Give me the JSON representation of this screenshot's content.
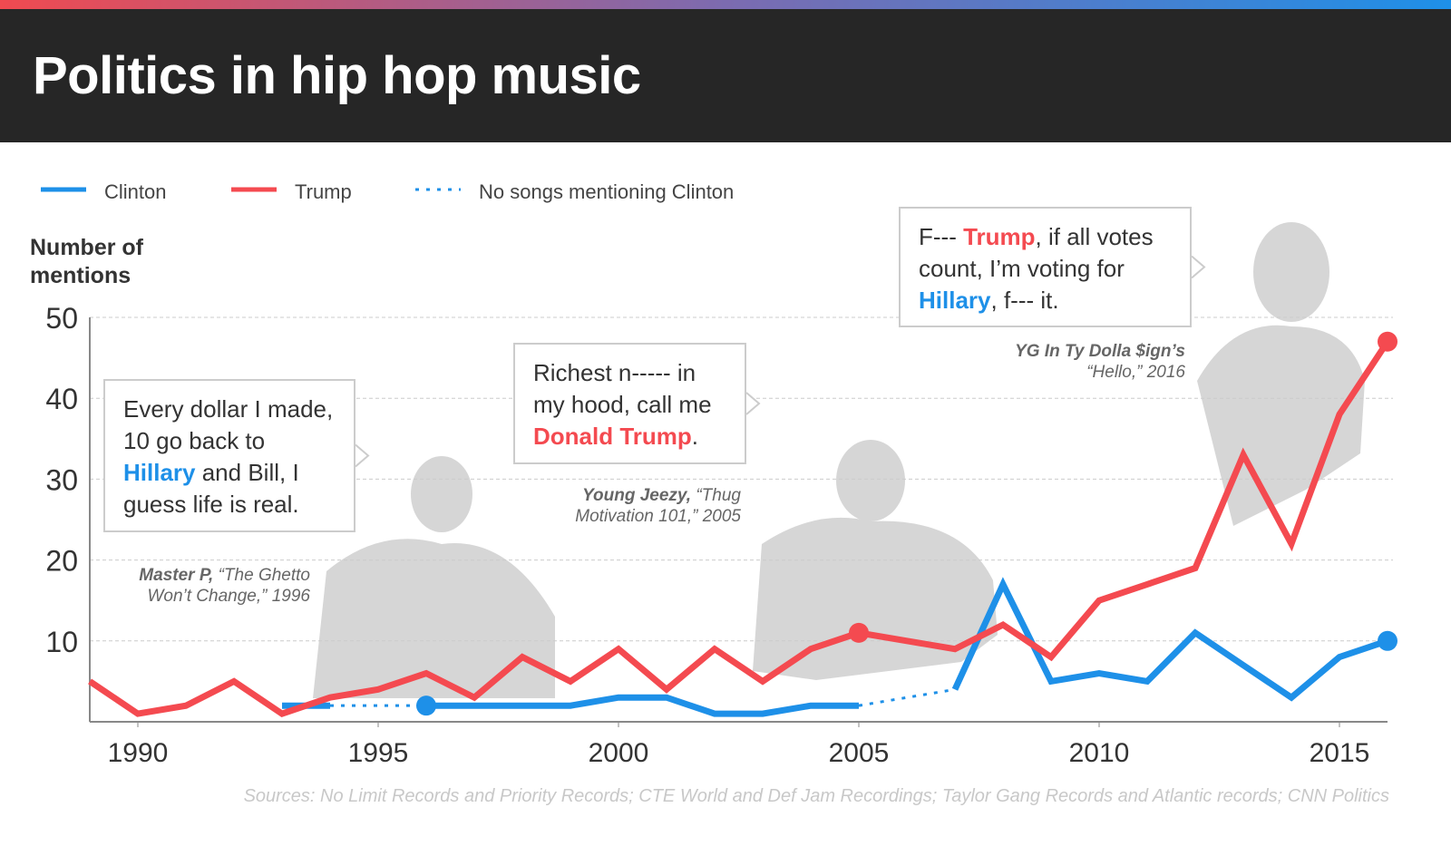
{
  "chart_data": {
    "type": "line",
    "title": "Politics in hip hop music",
    "y_label": "Number of mentions",
    "x": [
      1989,
      1990,
      1991,
      1992,
      1993,
      1994,
      1995,
      1996,
      1997,
      1998,
      1999,
      2000,
      2001,
      2002,
      2003,
      2004,
      2005,
      2006,
      2007,
      2008,
      2009,
      2010,
      2011,
      2012,
      2013,
      2014,
      2015,
      2016
    ],
    "series": [
      {
        "name": "Clinton",
        "color": "#1e90e8",
        "highlight": [
          1996,
          2016
        ],
        "values": [
          null,
          null,
          null,
          null,
          2,
          2,
          null,
          2,
          2,
          2,
          2,
          3,
          3,
          1,
          1,
          2,
          2,
          null,
          4,
          17,
          5,
          6,
          5,
          11,
          7,
          3,
          8,
          10
        ]
      },
      {
        "name": "Trump",
        "color": "#f44a50",
        "highlight": [
          2005,
          2016
        ],
        "values": [
          5,
          1,
          2,
          5,
          1,
          3,
          4,
          6,
          3,
          8,
          5,
          9,
          4,
          9,
          5,
          9,
          11,
          10,
          9,
          12,
          8,
          15,
          17,
          19,
          33,
          22,
          38,
          47
        ]
      }
    ],
    "gap_legend": {
      "label": "No songs mentioning Clinton",
      "style": "dotted",
      "color": "#1e90e8"
    },
    "xlim": [
      1989,
      2016
    ],
    "ylim": [
      0,
      50
    ],
    "xticks": [
      1990,
      1995,
      2000,
      2005,
      2010,
      2015
    ],
    "yticks": [
      10,
      20,
      30,
      40,
      50
    ],
    "grid": true,
    "annotations": [
      {
        "quote": [
          {
            "text": "Every dollar I made, 10 go back to "
          },
          {
            "text": "Hillary",
            "color": "#1e90e8"
          },
          {
            "text": " and Bill, I guess life is real."
          }
        ],
        "artist": "Master P,",
        "song": "“The Ghetto Won’t Change,” 1996"
      },
      {
        "quote": [
          {
            "text": "Richest n----- in my hood, call me "
          },
          {
            "text": "Donald Trump",
            "color": "#f44a50"
          },
          {
            "text": "."
          }
        ],
        "artist": "Young Jeezy,",
        "song": "“Thug Motivation 101,” 2005"
      },
      {
        "quote": [
          {
            "text": "F--- "
          },
          {
            "text": "Trump",
            "color": "#f44a50"
          },
          {
            "text": ", if all votes count, I’m voting for "
          },
          {
            "text": "Hillary",
            "color": "#1e90e8"
          },
          {
            "text": ", f--- it."
          }
        ],
        "artist": "YG In Ty Dolla $ign’s",
        "song": "“Hello,” 2016"
      }
    ],
    "source": "Sources: No Limit Records and Priority Records; CTE World and Def Jam Recordings; Taylor Gang Records and Atlantic records; CNN Politics"
  }
}
